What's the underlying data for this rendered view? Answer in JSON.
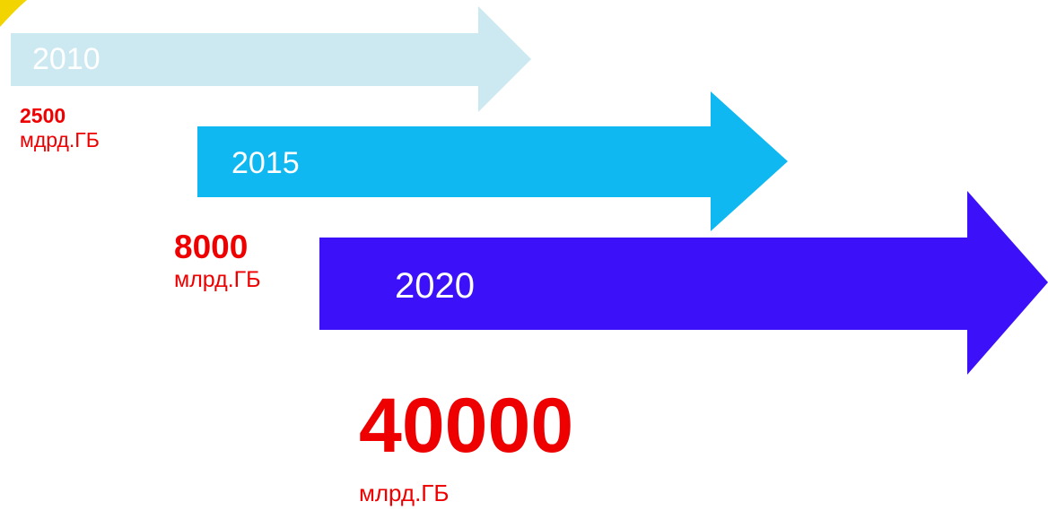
{
  "arrows": [
    {
      "year": "2010",
      "color": "#cce8f0",
      "text_color": "#ffffff"
    },
    {
      "year": "2015",
      "color": "#10b8f2",
      "text_color": "#ffffff"
    },
    {
      "year": "2020",
      "color": "#3c10f8",
      "text_color": "#ffffff"
    }
  ],
  "labels": [
    {
      "value": "2500",
      "unit": "мдрд.ГБ"
    },
    {
      "value": "8000",
      "unit": "млрд.ГБ"
    },
    {
      "value": "40000",
      "unit": "млрд.ГБ"
    }
  ],
  "colors": {
    "label_text": "#ee0000",
    "corner_accent": "#f2d500"
  }
}
